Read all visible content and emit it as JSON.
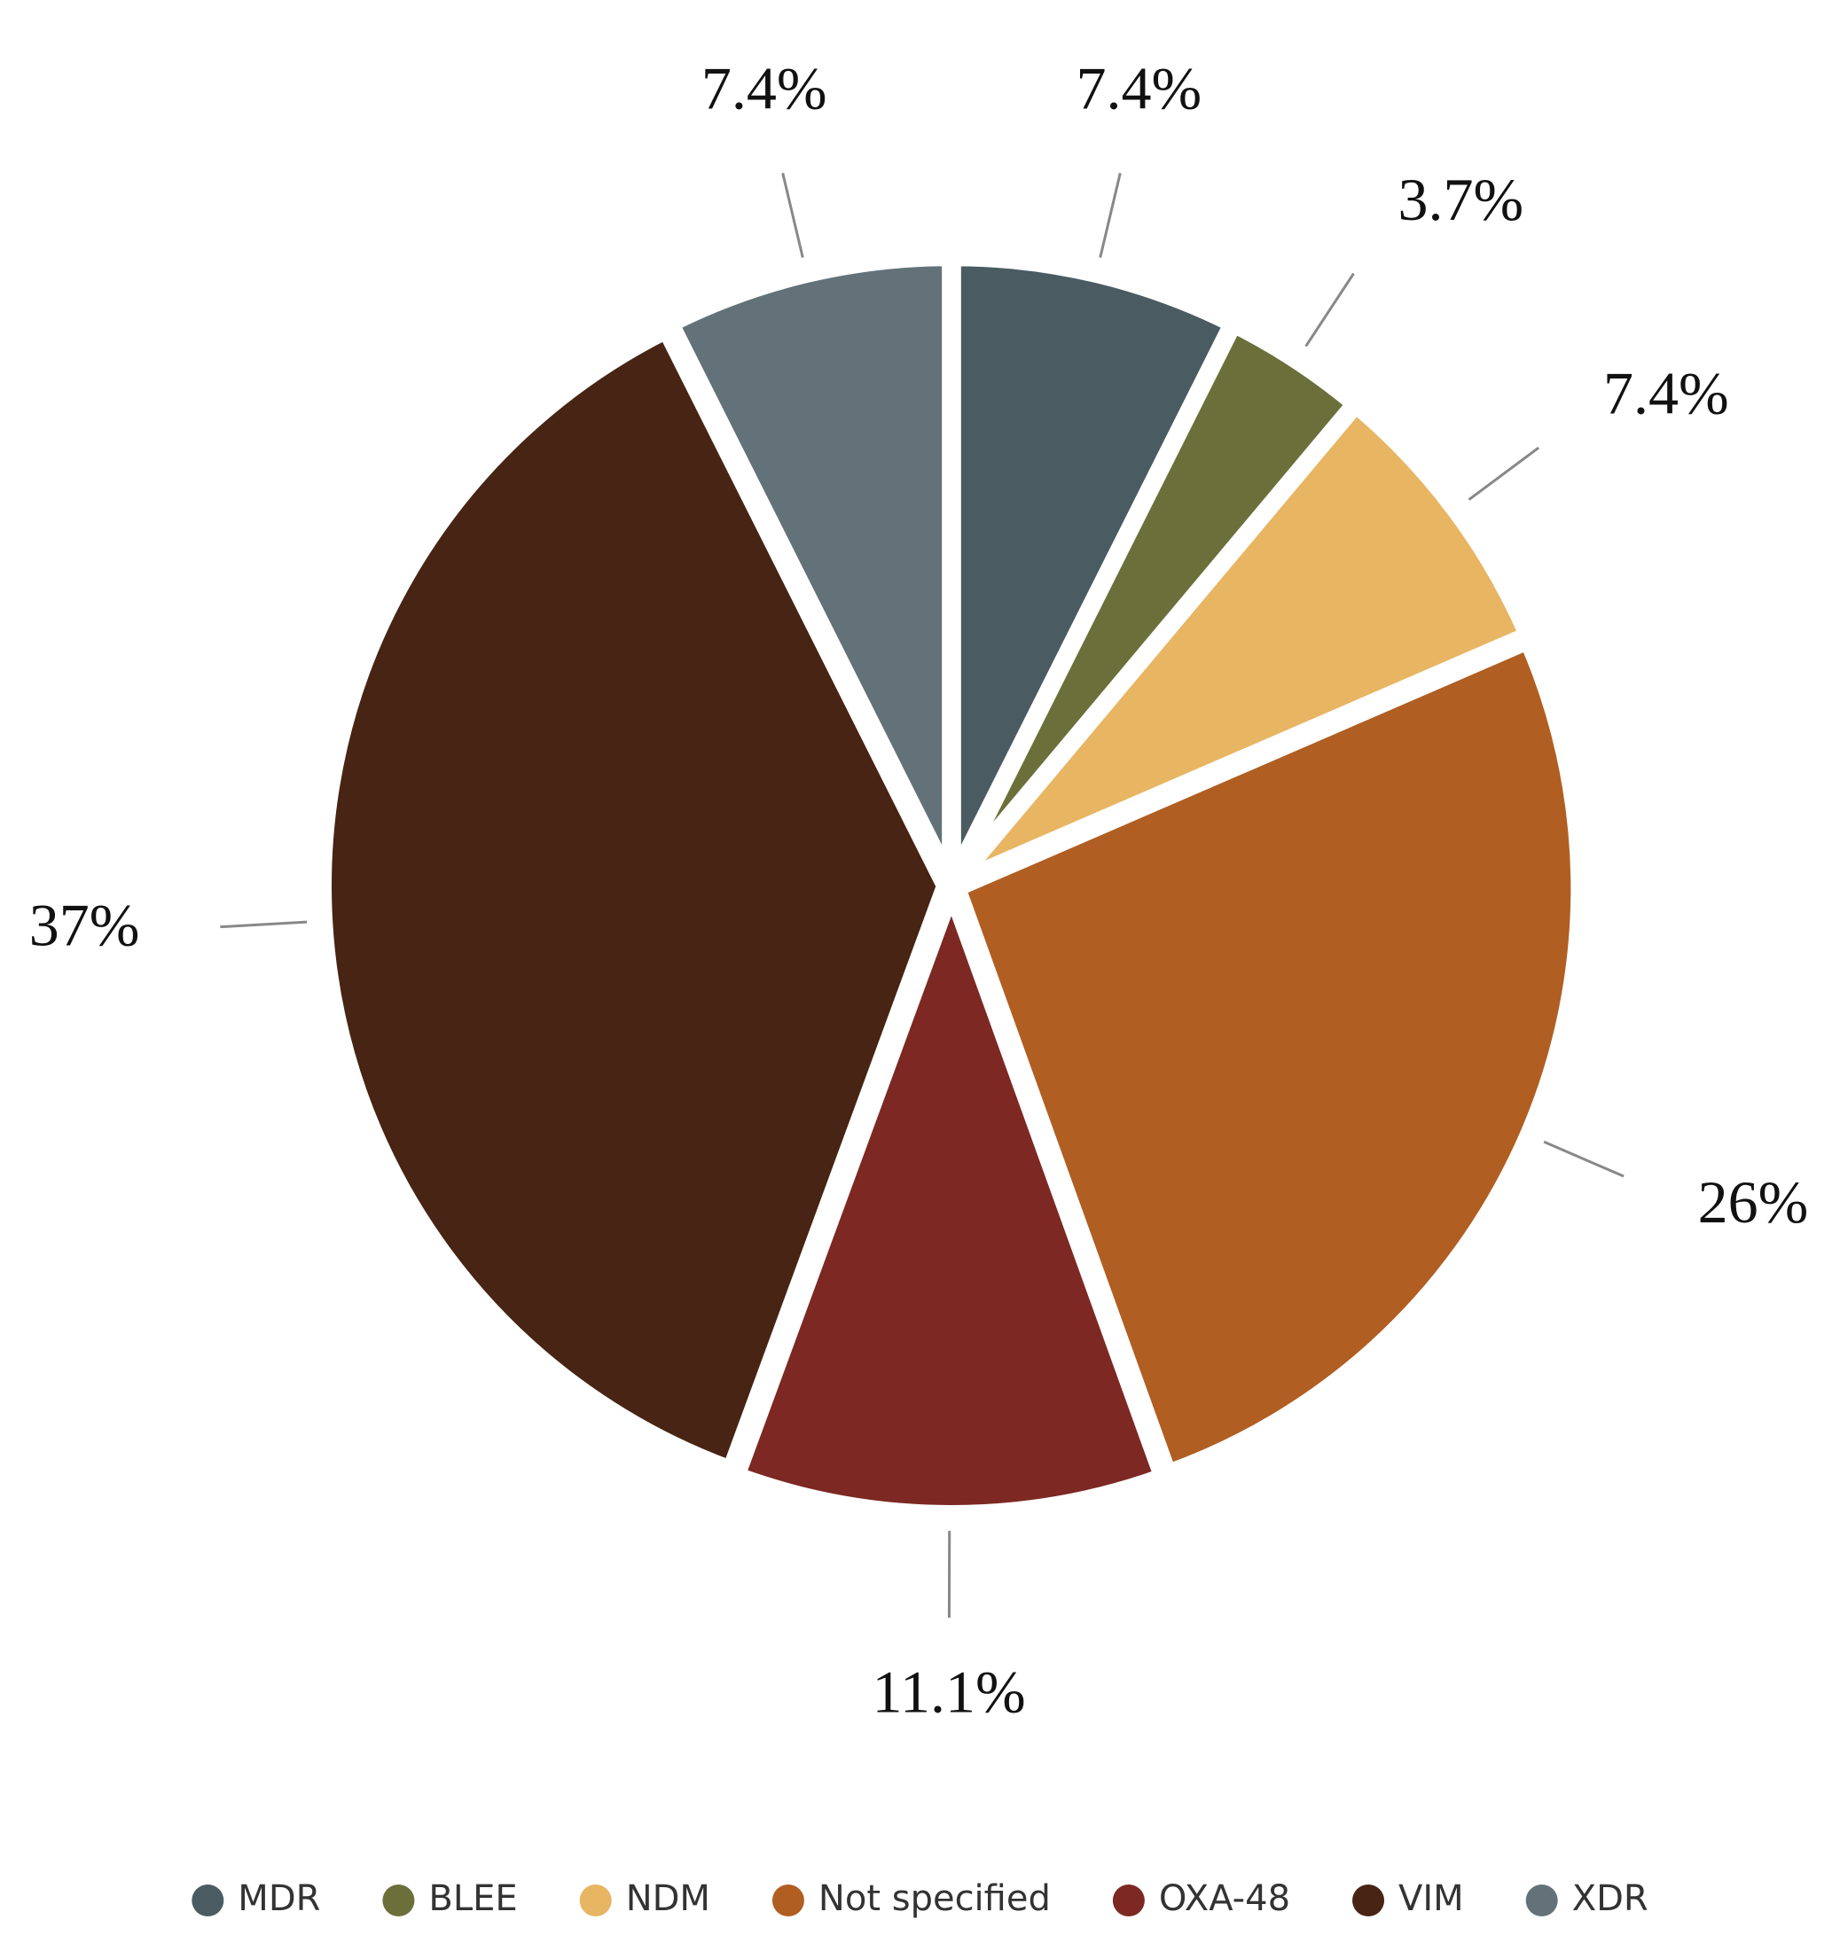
{
  "chart_data": {
    "type": "pie",
    "categories": [
      "MDR",
      "BLEE",
      "NDM",
      "Not specified",
      "OXA-48",
      "VIM",
      "XDR"
    ],
    "values": [
      7.4,
      3.7,
      7.4,
      26,
      11.1,
      37,
      7.4
    ],
    "value_labels": [
      "7.4%",
      "3.7%",
      "7.4%",
      "26%",
      "11.1%",
      "37%",
      "7.4%"
    ],
    "colors": [
      "#4a5b62",
      "#6b703b",
      "#e8b563",
      "#b05e22",
      "#7d2823",
      "#472413",
      "#627278"
    ],
    "legend": "bottom"
  }
}
